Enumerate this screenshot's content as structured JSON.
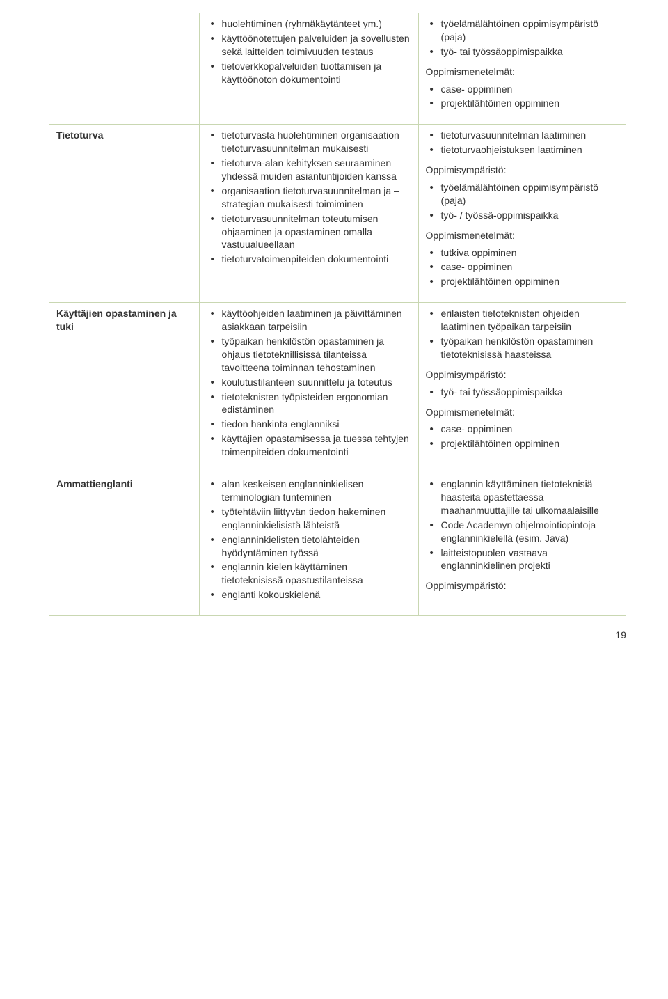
{
  "colors": {
    "border": "#c9d7b2",
    "text": "#333333",
    "background": "#ffffff"
  },
  "typography": {
    "font_family": "Arial, Helvetica, sans-serif",
    "base_size_pt": 11,
    "line_height": 1.35,
    "label_weight": "bold"
  },
  "layout": {
    "col_widths_pct": [
      26,
      38,
      36
    ]
  },
  "page_number": "19",
  "rows": [
    {
      "label": "",
      "mid": [
        "huolehtiminen (ryhmäkäytänteet ym.)",
        "käyttöönotettujen palveluiden ja sovellusten sekä laitteiden toimivuuden testaus",
        "tietoverkkopalveluiden tuottamisen ja käyttöönoton dokumentointi"
      ],
      "right_blocks": [
        {
          "type": "list",
          "items": [
            "työelämälähtöinen oppimisympäristö (paja)",
            "työ- tai työssäoppimispaikka"
          ]
        },
        {
          "type": "heading",
          "text": "Oppimismenetelmät:"
        },
        {
          "type": "list",
          "items": [
            "case- oppiminen",
            "projektilähtöinen oppiminen"
          ]
        }
      ]
    },
    {
      "label": "Tietoturva",
      "mid": [
        "tietoturvasta huolehtiminen organisaation tietoturvasuunnitelman mukaisesti",
        "tietoturva-alan kehityksen seuraaminen yhdessä muiden asiantuntijoiden kanssa",
        "organisaation tietoturvasuunnitelman ja –strategian mukaisesti toimiminen",
        "tietoturvasuunnitelman toteutumisen ohjaaminen ja opastaminen omalla vastuualueellaan",
        "tietoturvatoimenpiteiden dokumentointi"
      ],
      "right_blocks": [
        {
          "type": "list",
          "items": [
            "tietoturvasuunnitelman laatiminen",
            "tietoturvaohjeistuksen laatiminen"
          ]
        },
        {
          "type": "heading",
          "text": "Oppimisympäristö:"
        },
        {
          "type": "list",
          "items": [
            "työelämälähtöinen oppimisympäristö (paja)",
            "työ- / työssä-oppimispaikka"
          ]
        },
        {
          "type": "heading",
          "text": "Oppimismenetelmät:"
        },
        {
          "type": "list",
          "items": [
            "tutkiva oppiminen",
            "case- oppiminen",
            "projektilähtöinen oppiminen"
          ]
        }
      ]
    },
    {
      "label": "Käyttäjien opastaminen ja tuki",
      "mid": [
        "käyttöohjeiden laatiminen ja päivittäminen asiakkaan tarpeisiin",
        "työpaikan henkilöstön opastaminen ja ohjaus tietoteknillisissä tilanteissa tavoitteena toiminnan tehostaminen",
        "koulutustilanteen suunnittelu ja toteutus",
        "tietoteknisten työpisteiden ergonomian edistäminen",
        "tiedon hankinta englanniksi",
        "käyttäjien opastamisessa ja tuessa tehtyjen toimenpiteiden dokumentointi"
      ],
      "right_blocks": [
        {
          "type": "list",
          "items": [
            "erilaisten tietoteknisten ohjeiden laatiminen työpaikan tarpeisiin",
            "työpaikan henkilöstön opastaminen tietoteknisissä haasteissa"
          ]
        },
        {
          "type": "heading",
          "text": "Oppimisympäristö:"
        },
        {
          "type": "list",
          "items": [
            "työ- tai työssäoppimispaikka"
          ]
        },
        {
          "type": "heading",
          "text": " Oppimismenetelmät:"
        },
        {
          "type": "list",
          "items": [
            "case- oppiminen",
            "projektilähtöinen oppiminen"
          ]
        }
      ]
    },
    {
      "label": "Ammattienglanti",
      "mid": [
        "alan keskeisen englanninkielisen terminologian tunteminen",
        "työtehtäviin liittyvän tiedon hakeminen englanninkielisistä lähteistä",
        "englanninkielisten tietolähteiden hyödyntäminen työssä",
        "englannin kielen käyttäminen tietoteknisissä opastustilanteissa",
        "englanti kokouskielenä"
      ],
      "right_blocks": [
        {
          "type": "list",
          "items": [
            "englannin käyttäminen tietoteknisiä haasteita opastettaessa maahanmuuttajille tai ulkomaalaisille",
            "Code Academyn ohjelmointiopintoja englanninkielellä (esim. Java)",
            "laitteistopuolen vastaava englanninkielinen projekti"
          ]
        },
        {
          "type": "heading",
          "text": "Oppimisympäristö:"
        }
      ]
    }
  ]
}
